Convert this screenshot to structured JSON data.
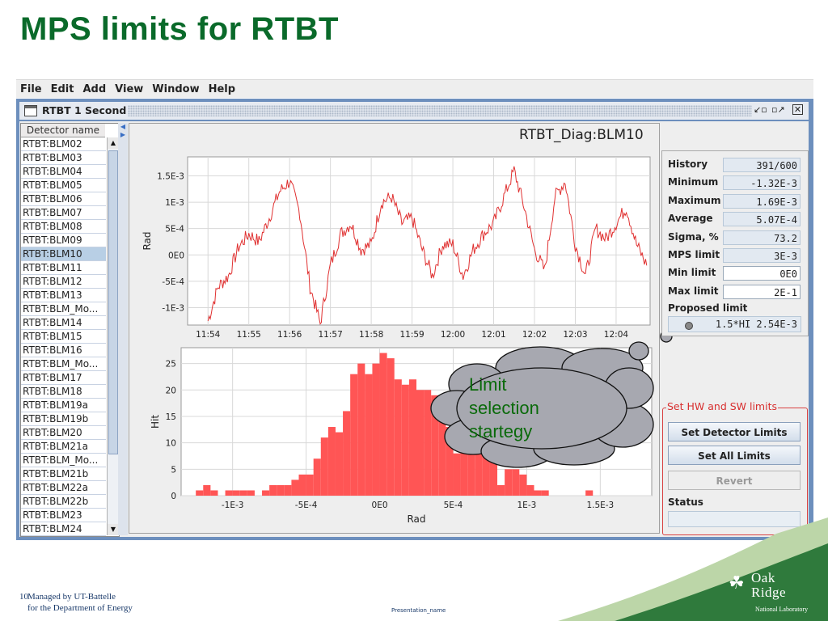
{
  "slide": {
    "title": "MPS limits for RTBT",
    "page_number": "10",
    "footer_line1": "Managed by UT-Battelle",
    "footer_line2": "for the Department of Energy",
    "presentation_name": "Presentation_name",
    "logo_line1": "Oak",
    "logo_line2": "Ridge",
    "logo_line3": "National Laboratory"
  },
  "menu": [
    "File",
    "Edit",
    "Add",
    "View",
    "Window",
    "Help"
  ],
  "window": {
    "title": "RTBT 1 Second",
    "icons": [
      "minimize-icon",
      "maximize-icon",
      "close-icon"
    ]
  },
  "detector_list": {
    "header": "Detector name",
    "items": [
      "RTBT:BLM02",
      "RTBT:BLM03",
      "RTBT:BLM04",
      "RTBT:BLM05",
      "RTBT:BLM06",
      "RTBT:BLM07",
      "RTBT:BLM08",
      "RTBT:BLM09",
      "RTBT:BLM10",
      "RTBT:BLM11",
      "RTBT:BLM12",
      "RTBT:BLM13",
      "RTBT:BLM_Mo...",
      "RTBT:BLM14",
      "RTBT:BLM15",
      "RTBT:BLM16",
      "RTBT:BLM_Mo...",
      "RTBT:BLM17",
      "RTBT:BLM18",
      "RTBT:BLM19a",
      "RTBT:BLM19b",
      "RTBT:BLM20",
      "RTBT:BLM21a",
      "RTBT:BLM_Mo...",
      "RTBT:BLM21b",
      "RTBT:BLM22a",
      "RTBT:BLM22b",
      "RTBT:BLM23",
      "RTBT:BLM24"
    ],
    "selected": "RTBT:BLM10"
  },
  "plot_title": "RTBT_Diag:BLM10",
  "stats": [
    {
      "label": "History",
      "value": "391/600"
    },
    {
      "label": "Minimum",
      "value": "-1.32E-3"
    },
    {
      "label": "Maximum",
      "value": "1.69E-3"
    },
    {
      "label": "Average",
      "value": "5.07E-4"
    },
    {
      "label": "Sigma, %",
      "value": "73.2"
    },
    {
      "label": "MPS limit",
      "value": "3E-3"
    },
    {
      "label": "Min limit",
      "value": "0E0"
    },
    {
      "label": "Max limit",
      "value": "2E-1"
    }
  ],
  "proposed": {
    "label": "Proposed limit",
    "value": "1.5*HI 2.54E-3"
  },
  "hw_group": {
    "title": "Set HW and SW limits",
    "set_detector": "Set Detector Limits",
    "set_all": "Set All Limits",
    "revert": "Revert",
    "status_label": "Status",
    "status_value": ""
  },
  "callout": {
    "lines": [
      "Limit",
      "selection",
      "startegy"
    ]
  },
  "colors": {
    "trace": "#e03030",
    "histogram": "#ff5555",
    "title_green": "#0a6a2a",
    "accent_blue": "#6d8fbd"
  },
  "chart_data": [
    {
      "type": "line",
      "ylabel": "Rad",
      "yticks": [
        "1.5E-3",
        "1E-3",
        "5E-4",
        "0E0",
        "-5E-4",
        "-1E-3"
      ],
      "ytick_values": [
        0.0015,
        0.001,
        0.0005,
        0,
        -0.0005,
        -0.001
      ],
      "xticks": [
        "11:54",
        "11:55",
        "11:56",
        "11:57",
        "11:58",
        "11:59",
        "12:00",
        "12:01",
        "12:02",
        "12:03",
        "12:04"
      ],
      "ylim": [
        -0.00133,
        0.00186
      ],
      "grid": true,
      "series": [
        {
          "x": [
            "11:54:00",
            "11:54:15",
            "11:54:30",
            "11:54:45",
            "11:55:00",
            "11:55:15",
            "11:55:30",
            "11:55:45",
            "11:56:00",
            "11:56:15",
            "11:56:30",
            "11:56:45",
            "11:57:00",
            "11:57:15",
            "11:57:30",
            "11:57:45",
            "11:58:00",
            "11:58:15",
            "11:58:30",
            "11:58:45",
            "11:59:00",
            "11:59:15",
            "11:59:30",
            "11:59:45",
            "12:00:00",
            "12:00:15",
            "12:00:30",
            "12:00:45",
            "12:01:00",
            "12:01:15",
            "12:01:30",
            "12:01:45",
            "12:02:00",
            "12:02:15",
            "12:02:30",
            "12:02:45",
            "12:03:00",
            "12:03:15",
            "12:03:30",
            "12:03:45",
            "12:04:00",
            "12:04:15",
            "12:04:30",
            "12:04:45"
          ],
          "y": [
            -0.00125,
            -0.0006,
            -0.0004,
            0.00015,
            0.0004,
            0.00025,
            0.0007,
            0.0012,
            0.0014,
            0.0008,
            -0.0006,
            -0.0013,
            -0.0002,
            0.0004,
            0.0006,
            0.0001,
            0.0002,
            0.001,
            0.0011,
            0.0006,
            0.0007,
            0.0001,
            -0.0004,
            0.0002,
            0.0002,
            -0.0004,
            0.0001,
            0.0004,
            0.0006,
            0.0011,
            0.0016,
            0.0009,
            0.0001,
            -0.0003,
            0.0011,
            0.0014,
            0.0002,
            -0.0004,
            0.0005,
            0.0003,
            0.0006,
            0.0009,
            0.0002,
            -0.0002
          ]
        }
      ]
    },
    {
      "type": "bar",
      "xlabel": "Rad",
      "ylabel": "Hit",
      "xticks": [
        "-1E-3",
        "-5E-4",
        "0E0",
        "5E-4",
        "1E-3",
        "1.5E-3"
      ],
      "xtick_values": [
        -0.001,
        -0.0005,
        0,
        0.0005,
        0.001,
        0.0015
      ],
      "yticks": [
        "0",
        "5",
        "10",
        "15",
        "20",
        "25"
      ],
      "ylim": [
        0,
        28
      ],
      "xlim": [
        -0.00135,
        0.00185
      ],
      "bin_start": -0.0013,
      "bin_width": 5e-05,
      "values": [
        0,
        1,
        2,
        1,
        0,
        1,
        1,
        1,
        1,
        0,
        1,
        2,
        2,
        2,
        3,
        4,
        4,
        7,
        11,
        13,
        12,
        16,
        23,
        25,
        23,
        25,
        27,
        26,
        22,
        21,
        22,
        20,
        20,
        19,
        16,
        13,
        8,
        9,
        8,
        8,
        8,
        7,
        2,
        5,
        5,
        4,
        2,
        1,
        1,
        0,
        0,
        0,
        0,
        0,
        1,
        0,
        0,
        0,
        0,
        0,
        0,
        0,
        0,
        0
      ]
    }
  ]
}
